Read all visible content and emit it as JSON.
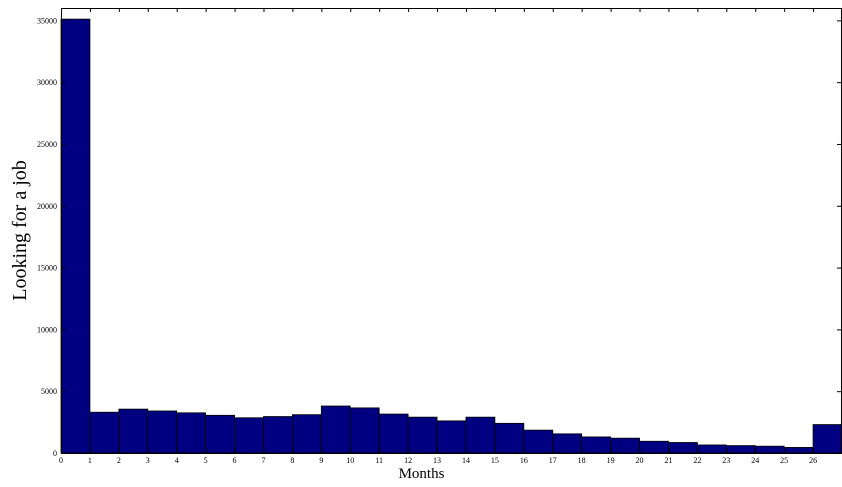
{
  "chart_data": {
    "type": "bar",
    "title": "",
    "xlabel": "Months",
    "ylabel": "Looking for a job",
    "x": [
      0,
      1,
      2,
      3,
      4,
      5,
      6,
      7,
      8,
      9,
      10,
      11,
      12,
      13,
      14,
      15,
      16,
      17,
      18,
      19,
      20,
      21,
      22,
      23,
      24,
      25,
      26
    ],
    "values": [
      35100,
      3300,
      3550,
      3400,
      3250,
      3050,
      2850,
      2950,
      3100,
      3800,
      3650,
      3150,
      2900,
      2600,
      2900,
      2400,
      1850,
      1550,
      1300,
      1200,
      950,
      850,
      650,
      600,
      550,
      450,
      2300
    ],
    "bin_width": 1,
    "xlim": [
      0,
      27
    ],
    "ylim": [
      0,
      36000
    ],
    "xticks": [
      "0",
      "1",
      "2",
      "3",
      "4",
      "5",
      "6",
      "7",
      "8",
      "9",
      "10",
      "11",
      "12",
      "13",
      "14",
      "15",
      "16",
      "17",
      "18",
      "19",
      "20",
      "21",
      "22",
      "23",
      "24",
      "25",
      "26",
      "2"
    ],
    "yticks": [
      "0",
      "5000",
      "10000",
      "15000",
      "20000",
      "25000",
      "30000",
      "35000"
    ],
    "grid": false,
    "colors": {
      "bar": "#000080",
      "edge": "#000000",
      "axis": "#000000"
    }
  }
}
